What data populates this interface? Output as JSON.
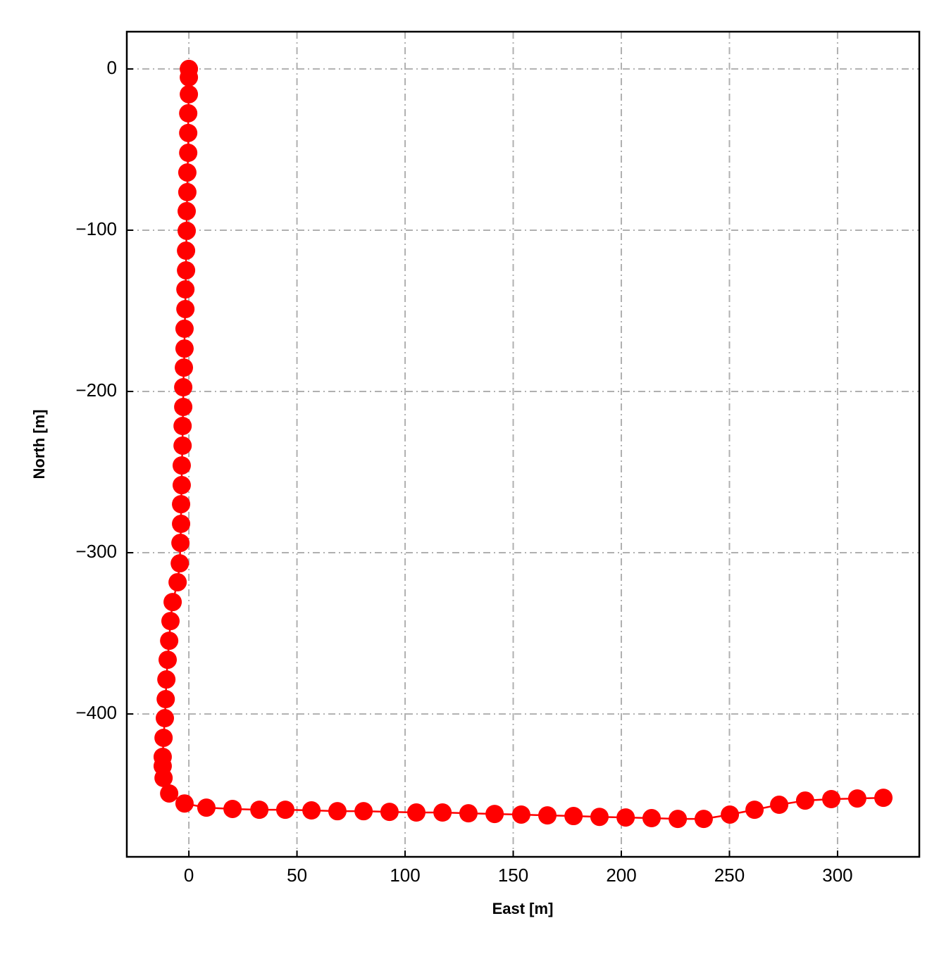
{
  "chart_data": {
    "type": "line",
    "xlabel": "East [m]",
    "ylabel": "North [m]",
    "x": [
      0,
      0,
      0,
      -0.3,
      -0.3,
      -0.3,
      -0.7,
      -0.7,
      -1.0,
      -1.0,
      -1.3,
      -1.3,
      -1.6,
      -1.6,
      -2.0,
      -2.0,
      -2.3,
      -2.6,
      -2.6,
      -2.9,
      -2.9,
      -3.3,
      -3.3,
      -3.6,
      -3.6,
      -3.9,
      -4.2,
      -5.2,
      -7.5,
      -8.5,
      -9.1,
      -9.8,
      -10.4,
      -10.7,
      -11.1,
      -11.7,
      -12.1,
      -12.1,
      -11.7,
      -9.1,
      -2.0,
      8.1,
      20.2,
      32.6,
      44.6,
      56.7,
      68.7,
      80.8,
      92.8,
      105.2,
      117.3,
      129.3,
      141.4,
      153.7,
      165.8,
      177.9,
      189.9,
      202.0,
      214.0,
      226.1,
      238.1,
      250.2,
      261.6,
      273.0,
      285.0,
      297.1,
      309.1,
      321.2
    ],
    "values": [
      0,
      -5.2,
      -15.7,
      -27.5,
      -39.7,
      -52.0,
      -64.2,
      -76.4,
      -88.2,
      -100.4,
      -112.7,
      -124.9,
      -136.7,
      -148.9,
      -161.1,
      -173.4,
      -185.2,
      -197.4,
      -209.6,
      -221.4,
      -233.6,
      -245.9,
      -258.1,
      -269.9,
      -282.1,
      -293.9,
      -306.6,
      -318.3,
      -330.6,
      -342.4,
      -354.6,
      -366.4,
      -378.6,
      -390.8,
      -402.6,
      -414.8,
      -426.6,
      -432.3,
      -439.7,
      -449.3,
      -455.5,
      -458.1,
      -458.9,
      -459.4,
      -459.4,
      -459.8,
      -460.3,
      -460.3,
      -460.7,
      -461.1,
      -461.1,
      -461.6,
      -462.0,
      -462.4,
      -462.9,
      -463.3,
      -463.8,
      -464.2,
      -464.6,
      -465.1,
      -465.1,
      -462.4,
      -459.4,
      -456.3,
      -453.7,
      -452.8,
      -452.4,
      -452.0
    ],
    "color": "#ff0000",
    "xlim": [
      -28.7,
      337.8
    ],
    "ylim": [
      -488.6,
      23.1
    ],
    "xticks": [
      0,
      50,
      100,
      150,
      200,
      250,
      300
    ],
    "yticks": [
      {
        "value": -400,
        "label": "−400"
      },
      {
        "value": -300,
        "label": "−300"
      },
      {
        "value": -200,
        "label": "−200"
      },
      {
        "value": -100,
        "label": "−100"
      },
      0
    ],
    "grid": true
  }
}
